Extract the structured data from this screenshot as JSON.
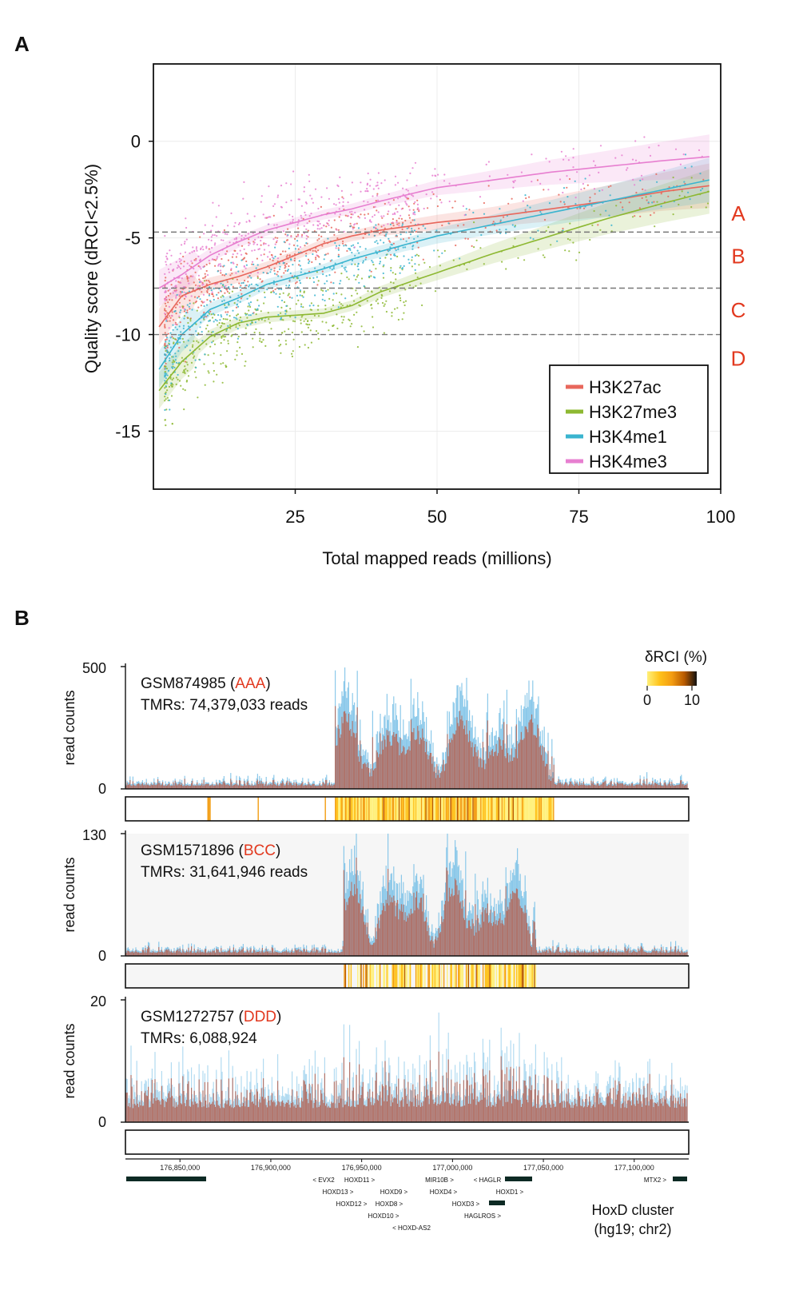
{
  "panels": {
    "a_label": "A",
    "b_label": "B"
  },
  "chart_data": [
    {
      "type": "scatter",
      "title": "",
      "xlabel": "Total mapped reads (millions)",
      "ylabel": "Quality score (dRCI<2.5%)",
      "xlim": [
        0,
        100
      ],
      "ylim": [
        -18,
        4
      ],
      "x_ticks": [
        25,
        50,
        75,
        100
      ],
      "y_ticks": [
        0,
        -5,
        -10,
        -15
      ],
      "grid": true,
      "legend_position": "bottom-right",
      "thresholds": [
        {
          "y": -4.7,
          "style": "dashed"
        },
        {
          "y": -7.6,
          "style": "dashed"
        },
        {
          "y": -10.0,
          "style": "dashed"
        }
      ],
      "zone_labels": [
        {
          "label": "A",
          "y": -3.7
        },
        {
          "label": "B",
          "y": -5.9
        },
        {
          "label": "C",
          "y": -8.7
        },
        {
          "label": "D",
          "y": -11.2
        }
      ],
      "series": [
        {
          "name": "H3K27ac",
          "color": "#e8675c",
          "x": [
            1,
            5,
            10,
            15,
            20,
            25,
            30,
            35,
            40,
            50,
            60,
            70,
            80,
            90,
            98
          ],
          "y": [
            -9.6,
            -8.0,
            -7.4,
            -7.0,
            -6.5,
            -5.9,
            -5.3,
            -4.9,
            -4.6,
            -4.2,
            -3.9,
            -3.5,
            -3.1,
            -2.6,
            -2.3
          ]
        },
        {
          "name": "H3K27me3",
          "color": "#8db832",
          "x": [
            1,
            5,
            10,
            15,
            20,
            25,
            30,
            35,
            40,
            50,
            60,
            70,
            80,
            90,
            98
          ],
          "y": [
            -12.9,
            -11.4,
            -10.1,
            -9.4,
            -9.1,
            -9.0,
            -8.9,
            -8.5,
            -7.8,
            -6.8,
            -5.8,
            -4.9,
            -4.0,
            -3.2,
            -2.6
          ]
        },
        {
          "name": "H3K4me1",
          "color": "#3ab4cf",
          "x": [
            1,
            5,
            10,
            15,
            20,
            25,
            30,
            35,
            40,
            50,
            60,
            70,
            80,
            90,
            98
          ],
          "y": [
            -11.8,
            -10.0,
            -8.7,
            -8.1,
            -7.4,
            -7.0,
            -6.6,
            -6.1,
            -5.7,
            -4.9,
            -4.3,
            -3.7,
            -3.1,
            -2.5,
            -2.0
          ]
        },
        {
          "name": "H3K4me3",
          "color": "#e77fd0",
          "x": [
            1,
            5,
            10,
            15,
            20,
            25,
            30,
            35,
            40,
            50,
            60,
            70,
            80,
            90,
            98
          ],
          "y": [
            -7.6,
            -6.9,
            -5.9,
            -5.2,
            -4.6,
            -4.2,
            -3.8,
            -3.5,
            -3.1,
            -2.4,
            -2.0,
            -1.6,
            -1.3,
            -1.0,
            -0.8
          ]
        }
      ]
    },
    {
      "type": "area",
      "title": "",
      "xlabel": "",
      "ylabel": "read counts",
      "xlim": [
        176820000,
        177130000
      ],
      "x_tick_labels": [
        {
          "x": 176850000,
          "label": "176,850,000"
        },
        {
          "x": 176900000,
          "label": "176,900,000"
        },
        {
          "x": 176950000,
          "label": "176,950,000"
        },
        {
          "x": 177000000,
          "label": "177,000,000"
        },
        {
          "x": 177050000,
          "label": "177,050,000"
        },
        {
          "x": 177100000,
          "label": "177,100,000"
        }
      ],
      "colorbar": {
        "title": "δRCI (%)",
        "min_label": "0",
        "max_label": "10",
        "colors": [
          "#fff07a",
          "#ffc21a",
          "#f39c12",
          "#b85a00",
          "#111111"
        ]
      },
      "tracks": [
        {
          "sample": "GSM874985",
          "grade": "AAA",
          "tmr_text": "TMRs: 74,379,033 reads",
          "ymax": 500,
          "ymax_label": "500",
          "ymin_label": "0",
          "noise": 0.03,
          "region": [
            176935000,
            177056000
          ],
          "density": "high"
        },
        {
          "sample": "GSM1571896",
          "grade": "BCC",
          "tmr_text": "TMRs: 31,641,946 reads",
          "ymax": 130,
          "ymax_label": "130",
          "ymin_label": "0",
          "noise": 0.03,
          "region": [
            176940000,
            177046000
          ],
          "density": "medium"
        },
        {
          "sample": "GSM1272757",
          "grade": "DDD",
          "tmr_text": "TMRs: 6,088,924",
          "ymax": 20,
          "ymax_label": "20",
          "ymin_label": "0",
          "noise": 0.14,
          "region": [
            176940000,
            177045000
          ],
          "density": "none"
        }
      ],
      "genes": {
        "row1": [
          "< EVX2",
          "HOXD11 >",
          "MIR10B >",
          "< HAGLR",
          "MTX2 >"
        ],
        "row2": [
          "HOXD13 >",
          "HOXD9 >",
          "HOXD4 >",
          "HOXD1 >"
        ],
        "row3": [
          "HOXD12 >",
          "HOXD8 >",
          "HOXD3 >"
        ],
        "row4": [
          "HOXD10 >",
          "HAGLROS >"
        ],
        "row5": [
          "< HOXD-AS2"
        ]
      },
      "cluster_label": "HoxD cluster",
      "assembly_label": "(hg19; chr2)"
    }
  ]
}
